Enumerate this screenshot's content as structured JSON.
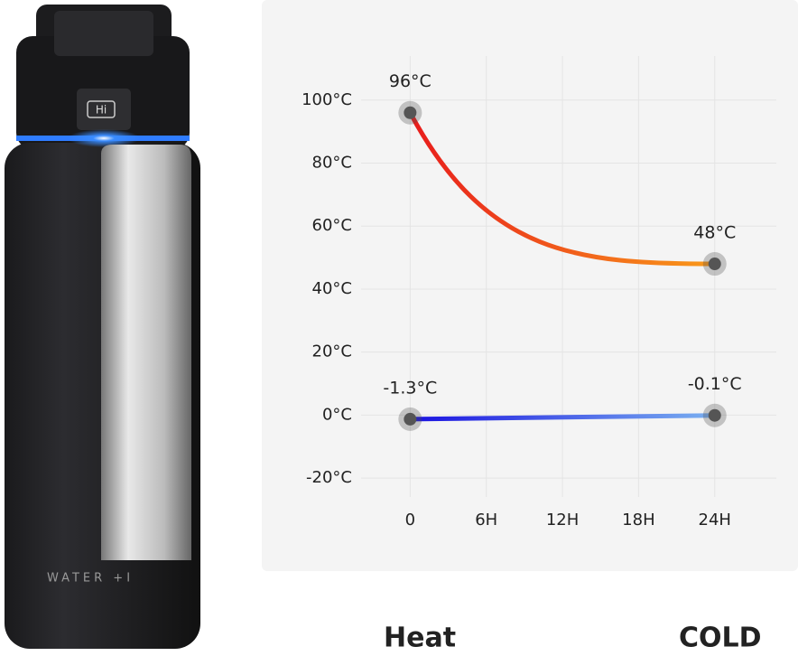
{
  "product": {
    "badge": "Hi",
    "brand": "WATER +I"
  },
  "chart_data": {
    "type": "line",
    "x": [
      0,
      24
    ],
    "xlim": [
      -6,
      28
    ],
    "xticks": [
      {
        "value": 0,
        "label": "0"
      },
      {
        "value": 6,
        "label": "6H"
      },
      {
        "value": 12,
        "label": "12H"
      },
      {
        "value": 18,
        "label": "18H"
      },
      {
        "value": 24,
        "label": "24H"
      }
    ],
    "ylim": [
      -26,
      114
    ],
    "yticks": [
      {
        "value": -20,
        "label": "-20°C"
      },
      {
        "value": 0,
        "label": "0°C"
      },
      {
        "value": 20,
        "label": "20°C"
      },
      {
        "value": 40,
        "label": "40°C"
      },
      {
        "value": 60,
        "label": "60°C"
      },
      {
        "value": 80,
        "label": "80°C"
      },
      {
        "value": 100,
        "label": "100°C"
      }
    ],
    "grid": true,
    "series": [
      {
        "name": "Heat",
        "color": [
          "#e81c1c",
          "#f99a1a"
        ],
        "values": [
          96,
          48
        ],
        "value_labels": [
          "96°C",
          "48°C"
        ]
      },
      {
        "name": "COLD",
        "color": [
          "#1a12e0",
          "#7ab0f0"
        ],
        "values": [
          -1.3,
          -0.1
        ],
        "value_labels": [
          "-1.3°C",
          "-0.1°C"
        ]
      }
    ]
  }
}
